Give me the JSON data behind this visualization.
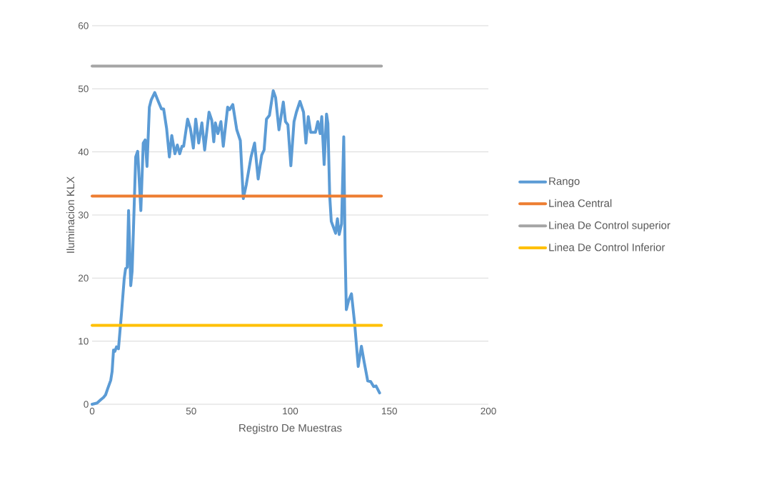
{
  "chart_data": {
    "type": "line",
    "xlabel": "Registro De Muestras",
    "ylabel": "Iluminacion KLX",
    "xlim": [
      0,
      200
    ],
    "xticks": [
      0,
      50,
      100,
      150,
      200
    ],
    "ylim": [
      0,
      60
    ],
    "yticks": [
      0,
      10,
      20,
      30,
      40,
      50,
      60
    ],
    "grid": "y",
    "legend": "right",
    "marker": "none",
    "line_style": "solid",
    "series": [
      {
        "name": "Rango",
        "color": "#5b9bd5",
        "x": [
          0,
          2.5,
          4.3,
          5.8,
          6.8,
          7.9,
          9.4,
          10.1,
          10.8,
          11.5,
          12.3,
          13.3,
          14.8,
          16.2,
          16.9,
          17.7,
          18.4,
          19.5,
          20.2,
          22.0,
          23.0,
          24.6,
          25.8,
          26.8,
          27.7,
          28.9,
          29.8,
          31.6,
          33.4,
          35.0,
          36.1,
          37.6,
          39.0,
          40.2,
          41.8,
          43.0,
          44.2,
          45.4,
          46.2,
          48.2,
          49.6,
          51.1,
          52.3,
          53.8,
          55.4,
          56.8,
          59.0,
          60.4,
          61.4,
          62.2,
          63.5,
          65.0,
          66.2,
          68.4,
          69.4,
          71.0,
          73.0,
          74.8,
          76.3,
          77.8,
          80.2,
          82.0,
          83.8,
          85.6,
          86.8,
          88.0,
          89.5,
          91.4,
          92.6,
          94.3,
          96.5,
          97.6,
          98.8,
          100.3,
          101.9,
          103.1,
          104.9,
          106.7,
          107.9,
          109.1,
          110.3,
          112.7,
          113.9,
          115.1,
          115.9,
          117.1,
          118.3,
          119.0,
          119.9,
          120.7,
          122.9,
          123.8,
          124.7,
          125.9,
          127.0,
          127.7,
          128.3,
          129.5,
          130.9,
          132.5,
          134.3,
          135.9,
          137.3,
          139.1,
          140.6,
          142.1,
          143.3,
          145.1
        ],
        "values": [
          0,
          0.2,
          0.7,
          1.1,
          1.5,
          2.5,
          3.8,
          5.2,
          8.6,
          8.4,
          9.1,
          8.8,
          14.3,
          19.9,
          21.5,
          21.7,
          30.7,
          18.8,
          21.1,
          39.2,
          40.1,
          30.7,
          41.4,
          41.9,
          37.7,
          47.1,
          48.2,
          49.4,
          48.0,
          46.8,
          46.8,
          43.7,
          39.2,
          42.6,
          39.7,
          41.1,
          39.7,
          40.9,
          40.9,
          45.2,
          43.7,
          40.6,
          45.2,
          41.4,
          44.6,
          40.3,
          46.3,
          45.0,
          41.6,
          44.6,
          42.9,
          44.8,
          40.9,
          47.1,
          46.7,
          47.5,
          43.5,
          41.8,
          32.6,
          34.8,
          39.2,
          41.4,
          35.7,
          39.5,
          40.3,
          45.2,
          45.8,
          49.7,
          48.6,
          43.5,
          47.9,
          44.8,
          44.3,
          37.8,
          44.8,
          46.3,
          48.0,
          46.3,
          41.4,
          45.6,
          43.1,
          43.1,
          44.8,
          42.9,
          45.6,
          38.0,
          46.0,
          44.5,
          33.1,
          29.0,
          27.1,
          29.4,
          26.9,
          28.6,
          42.4,
          24.1,
          15.0,
          16.5,
          17.5,
          12.8,
          6.0,
          9.2,
          6.7,
          3.7,
          3.6,
          2.8,
          2.9,
          1.8
        ]
      },
      {
        "name": "Linea Central",
        "color": "#ed7d31",
        "x": [
          0,
          146
        ],
        "values": [
          33.0,
          33.0
        ]
      },
      {
        "name": "Linea De Control superior",
        "color": "#a5a5a5",
        "x": [
          0,
          146
        ],
        "values": [
          53.6,
          53.6
        ]
      },
      {
        "name": "Linea De Control Inferior",
        "color": "#ffc000",
        "x": [
          0,
          146
        ],
        "values": [
          12.5,
          12.5
        ]
      }
    ]
  }
}
